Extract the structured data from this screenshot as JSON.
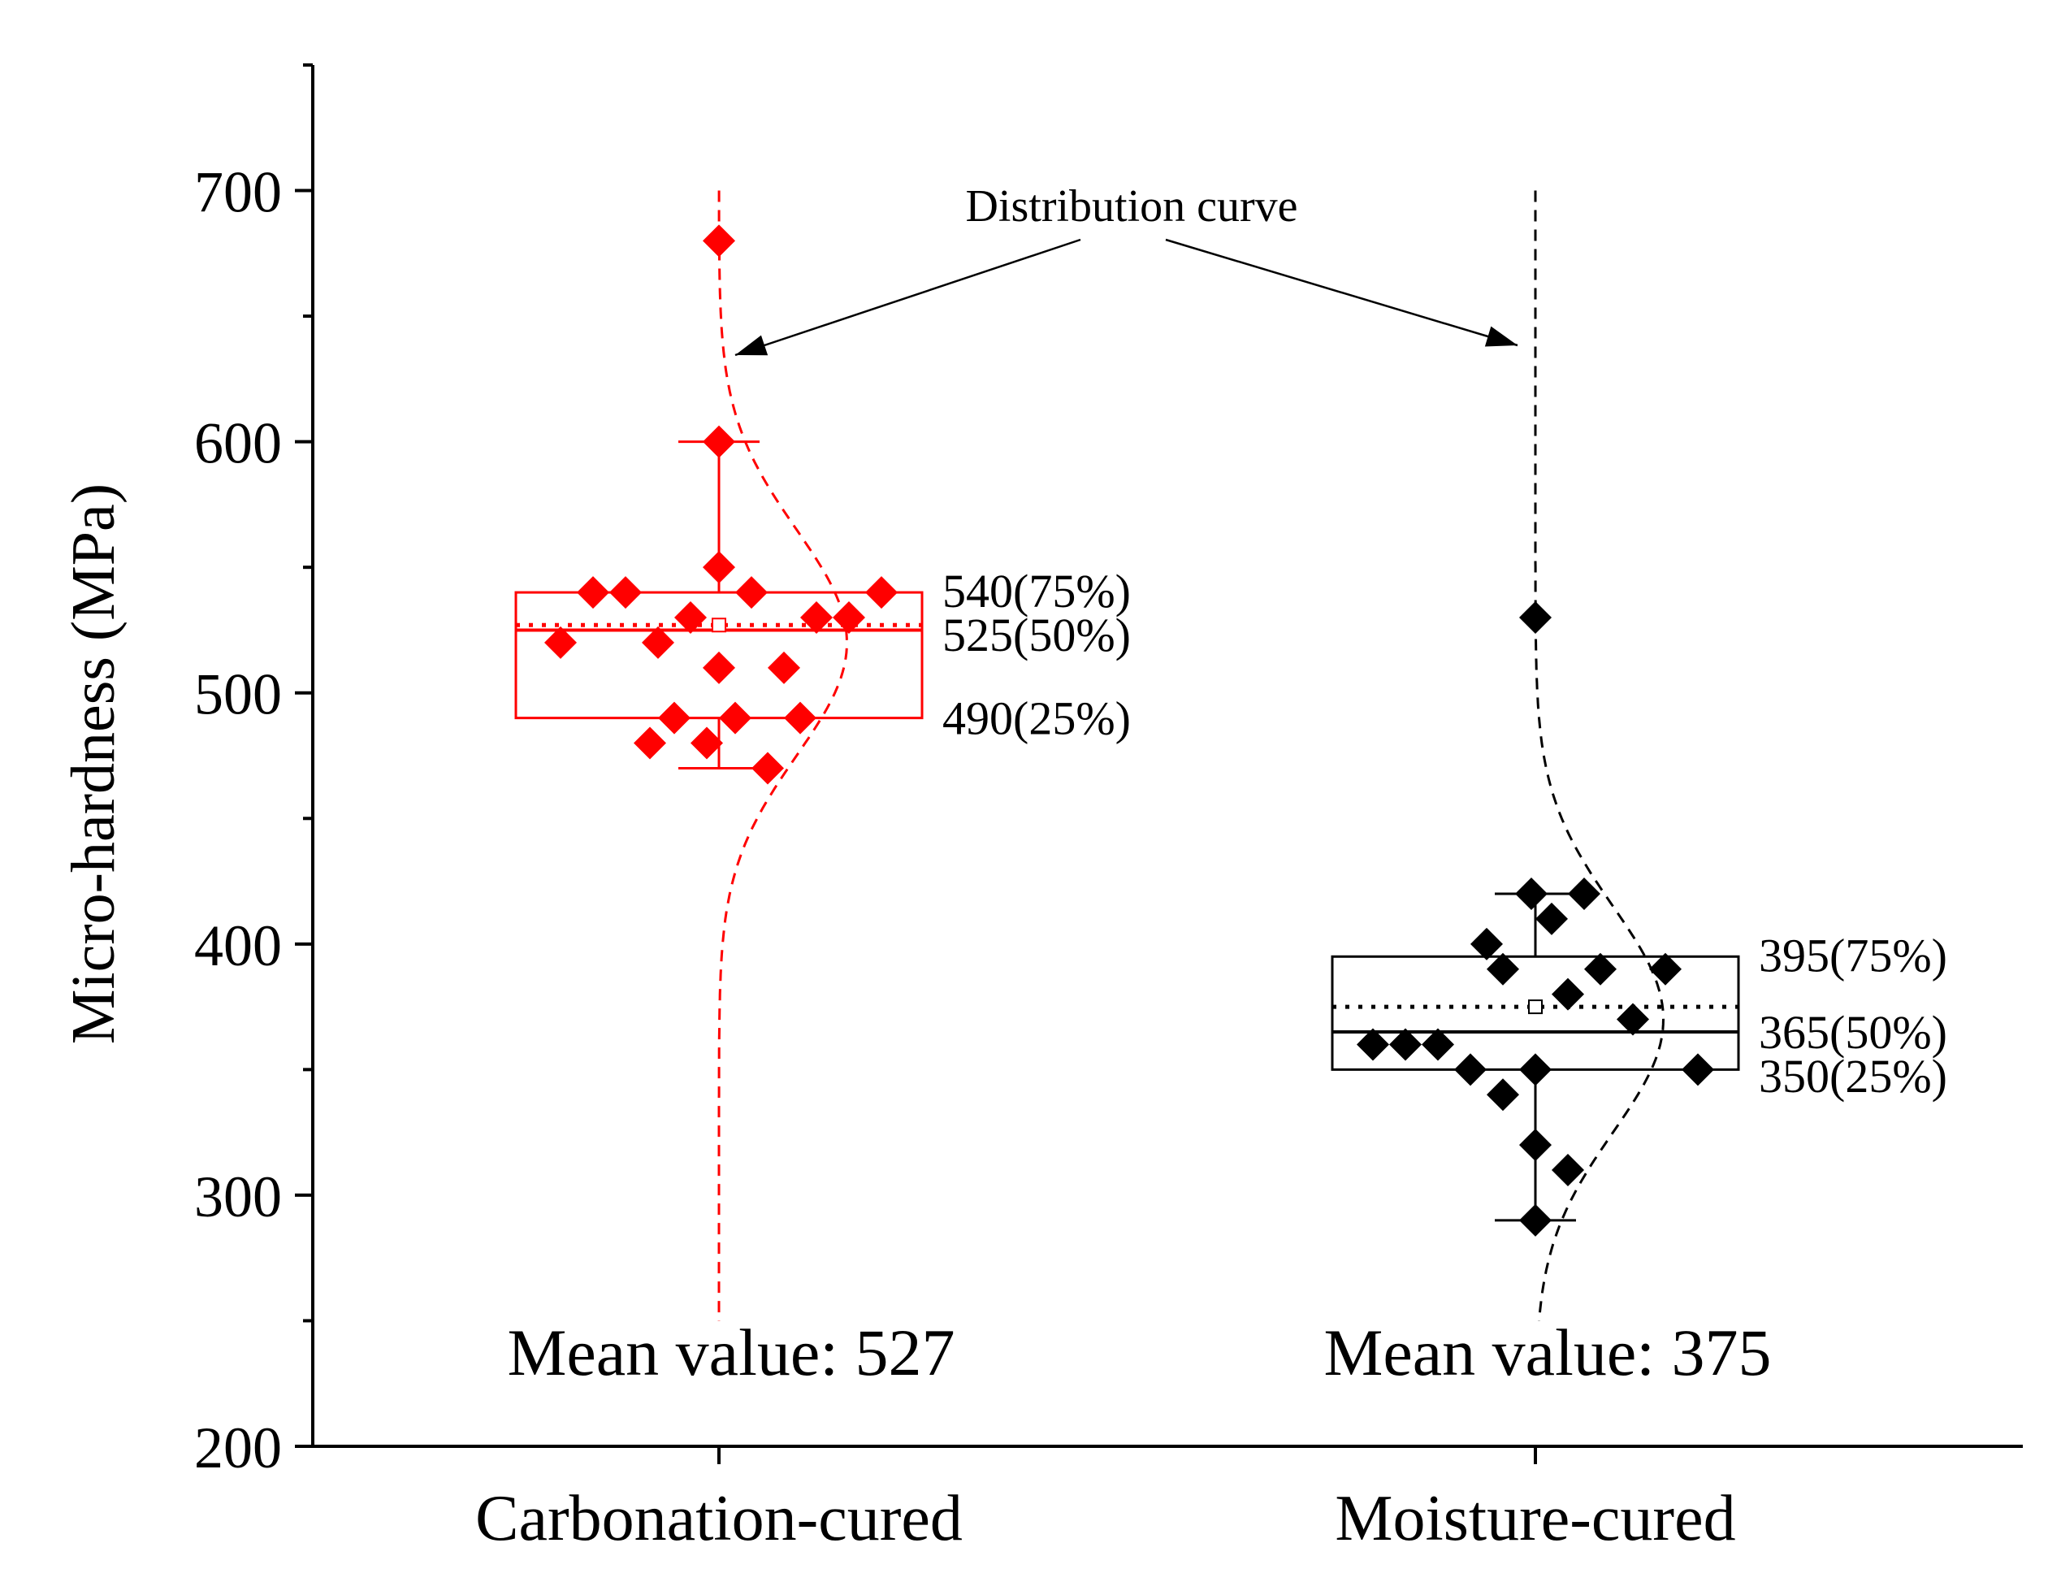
{
  "chart_data": {
    "type": "box",
    "title": "",
    "xlabel": "",
    "ylabel": "Micro-hardness (MPa)",
    "ylim": [
      200,
      750
    ],
    "yticks": [
      200,
      300,
      400,
      500,
      600,
      700
    ],
    "yticks_minor": [
      250,
      350,
      450,
      550,
      650,
      750
    ],
    "categories": [
      "Carbonation-cured",
      "Moisture-cured"
    ],
    "annotation_label": "Distribution curve",
    "series": [
      {
        "name": "Carbonation-cured",
        "color": "#ff0000",
        "q1": 490,
        "median": 525,
        "q3": 540,
        "mean": 527,
        "whisker_low": 470,
        "whisker_high": 600,
        "q1_label": "490(25%)",
        "median_label": "525(50%)",
        "q3_label": "540(75%)",
        "mean_label": "Mean value: 527",
        "points": [
          {
            "dx": -0.39,
            "y": 520
          },
          {
            "dx": -0.31,
            "y": 540
          },
          {
            "dx": -0.23,
            "y": 540
          },
          {
            "dx": -0.17,
            "y": 480
          },
          {
            "dx": -0.15,
            "y": 520
          },
          {
            "dx": -0.11,
            "y": 490
          },
          {
            "dx": -0.07,
            "y": 530
          },
          {
            "dx": -0.03,
            "y": 480
          },
          {
            "dx": 0.0,
            "y": 680
          },
          {
            "dx": 0.0,
            "y": 600
          },
          {
            "dx": 0.0,
            "y": 550
          },
          {
            "dx": 0.0,
            "y": 510
          },
          {
            "dx": 0.04,
            "y": 490
          },
          {
            "dx": 0.08,
            "y": 540
          },
          {
            "dx": 0.12,
            "y": 470
          },
          {
            "dx": 0.16,
            "y": 510
          },
          {
            "dx": 0.2,
            "y": 490
          },
          {
            "dx": 0.24,
            "y": 530
          },
          {
            "dx": 0.32,
            "y": 530
          },
          {
            "dx": 0.4,
            "y": 540
          }
        ],
        "curve_mean": 520,
        "curve_sd": 45,
        "curve_scale": 0.3,
        "curve_range": [
          250,
          700
        ]
      },
      {
        "name": "Moisture-cured",
        "color": "#000000",
        "q1": 350,
        "median": 365,
        "q3": 395,
        "mean": 375,
        "whisker_low": 290,
        "whisker_high": 420,
        "q1_label": "350(25%)",
        "median_label": "365(50%)",
        "q3_label": "395(75%)",
        "mean_label": "Mean value: 375",
        "points": [
          {
            "dx": -0.4,
            "y": 360
          },
          {
            "dx": -0.32,
            "y": 360
          },
          {
            "dx": -0.24,
            "y": 360
          },
          {
            "dx": -0.16,
            "y": 350
          },
          {
            "dx": -0.08,
            "y": 340
          },
          {
            "dx": -0.12,
            "y": 400
          },
          {
            "dx": -0.08,
            "y": 390
          },
          {
            "dx": -0.01,
            "y": 420
          },
          {
            "dx": 0.0,
            "y": 530
          },
          {
            "dx": 0.0,
            "y": 350
          },
          {
            "dx": 0.0,
            "y": 320
          },
          {
            "dx": 0.0,
            "y": 290
          },
          {
            "dx": 0.04,
            "y": 410
          },
          {
            "dx": 0.08,
            "y": 380
          },
          {
            "dx": 0.08,
            "y": 310
          },
          {
            "dx": 0.12,
            "y": 420
          },
          {
            "dx": 0.16,
            "y": 390
          },
          {
            "dx": 0.24,
            "y": 370
          },
          {
            "dx": 0.32,
            "y": 390
          },
          {
            "dx": 0.4,
            "y": 350
          }
        ],
        "curve_mean": 370,
        "curve_sd": 45,
        "curve_scale": 0.3,
        "curve_range": [
          250,
          700
        ]
      }
    ]
  }
}
